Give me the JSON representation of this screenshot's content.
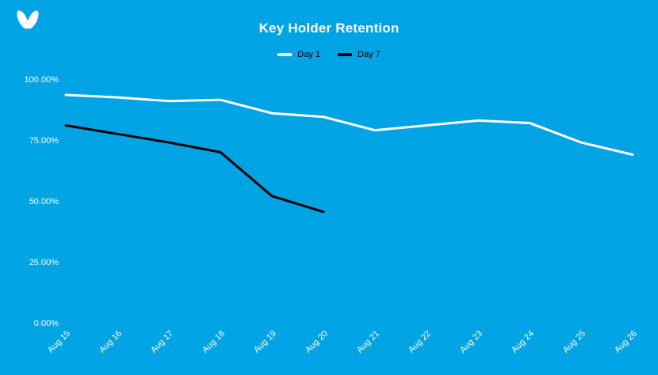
{
  "page": {
    "background": "#00a3e4"
  },
  "header": {
    "title": "Key Holder Retention"
  },
  "logo": {
    "name": "wings-logo",
    "color": "#ffffff"
  },
  "chart_data": {
    "type": "line",
    "title": "Key Holder Retention",
    "xlabel": "",
    "ylabel": "",
    "categories": [
      "Aug 15",
      "Aug 16",
      "Aug 17",
      "Aug 18",
      "Aug 19",
      "Aug 20",
      "Aug 21",
      "Aug 22",
      "Aug 23",
      "Aug 24",
      "Aug 25",
      "Aug 26"
    ],
    "series": [
      {
        "name": "Day 1",
        "color": "#ffffff",
        "values": [
          93.5,
          92.5,
          91,
          91.5,
          86,
          84.5,
          79,
          81,
          83,
          82,
          74,
          69
        ]
      },
      {
        "name": "Day 7",
        "color": "#000000",
        "values": [
          81,
          77.5,
          74,
          70,
          52,
          45.5,
          null,
          null,
          null,
          null,
          null,
          null
        ]
      }
    ],
    "ylim": [
      0,
      100
    ],
    "yticks": [
      100,
      75,
      50,
      25,
      0
    ],
    "ytick_labels": [
      "100.00%",
      "75.00%",
      "50.00%",
      "25.00%",
      "0.00%"
    ],
    "grid": false,
    "legend_position": "top",
    "axis_label_color": "#ffffff",
    "line_width": 3
  }
}
